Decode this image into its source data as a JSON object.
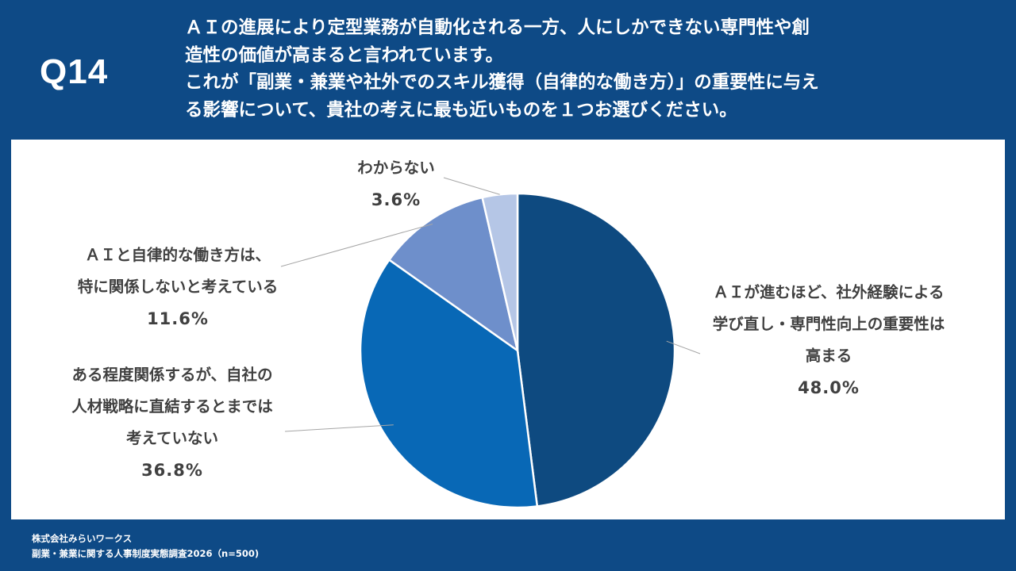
{
  "header": {
    "qnum": "Q14",
    "lines": [
      "ＡＩの進展により定型業務が自動化される一方、人にしかできない専門性や創",
      "造性の価値が高まると言われています。",
      "これが「副業・兼業や社外でのスキル獲得（自律的な働き方）」の重要性に与え",
      "る影響について、貴社の考えに最も近いものを１つお選びください。"
    ]
  },
  "chart_data": {
    "type": "pie",
    "start": "12 o'clock",
    "direction": "clockwise",
    "slices": [
      {
        "lines": [
          "ＡＩが進むほど、社外経験による",
          "学び直し・専門性向上の重要性は",
          "高まる"
        ],
        "value": 48.0,
        "label": "48.0%",
        "color": "#0e4a80"
      },
      {
        "lines": [
          "ある程度関係するが、自社の",
          "人材戦略に直結するとまでは",
          "考えていない"
        ],
        "value": 36.8,
        "label": "36.8%",
        "color": "#0868b6"
      },
      {
        "lines": [
          "ＡＩと自律的な働き方は、",
          "特に関係しないと考えている"
        ],
        "value": 11.6,
        "label": "11.6%",
        "color": "#6e8fcb"
      },
      {
        "lines": [
          "わからない"
        ],
        "value": 3.6,
        "label": "3.6%",
        "color": "#b5c6e6"
      }
    ]
  },
  "footer": {
    "line1": "株式会社みらいワークス",
    "line2": "副業・兼業に関する人事制度実態調査2026（n=500)"
  }
}
